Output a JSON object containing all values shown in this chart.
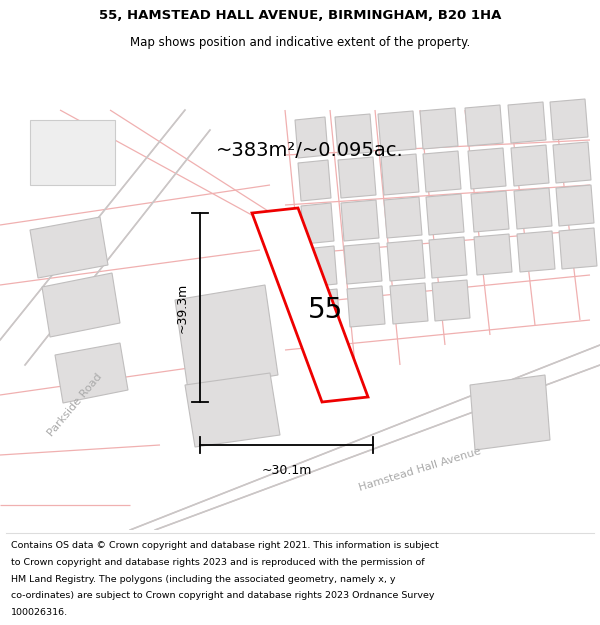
{
  "title_line1": "55, HAMSTEAD HALL AVENUE, BIRMINGHAM, B20 1HA",
  "title_line2": "Map shows position and indicative extent of the property.",
  "area_text": "~383m²/~0.095ac.",
  "plot_number": "55",
  "width_label": "~30.1m",
  "height_label": "~39.3m",
  "bg_color": "#f2f0f0",
  "plot_color_red": "#ee0000",
  "road_color_pink": "#f0b0b0",
  "road_color_grey": "#c8c8c8",
  "building_fill": "#e0dede",
  "building_stroke": "#c0bebe",
  "road_label_parkside": "Parkside Road",
  "road_label_hamstead": "Hamstead Hall Avenue",
  "footer_lines": [
    "Contains OS data © Crown copyright and database right 2021. This information is subject",
    "to Crown copyright and database rights 2023 and is reproduced with the permission of",
    "HM Land Registry. The polygons (including the associated geometry, namely x, y",
    "co-ordinates) are subject to Crown copyright and database rights 2023 Ordnance Survey",
    "100026316."
  ]
}
